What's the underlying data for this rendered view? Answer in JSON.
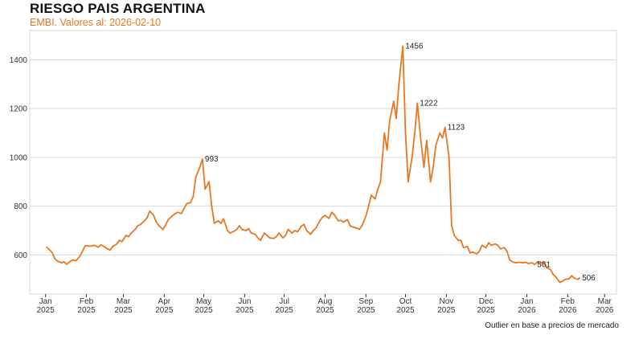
{
  "header": {
    "title": "RIESGO PAIS ARGENTINA",
    "subtitle": "EMBI. Valores al: 2026-02-10"
  },
  "footnote": "Outlier en base a precios de mercado",
  "colors": {
    "line": "#E87722",
    "subtitle": "#E87722",
    "grid": "#D9D9D9",
    "axis": "#333333"
  },
  "chart_data": {
    "type": "line",
    "title": "RIESGO PAIS ARGENTINA",
    "subtitle": "EMBI. Valores al: 2026-02-10",
    "xlabel": "",
    "ylabel": "",
    "grid": true,
    "legend": "none",
    "ylim": [
      440,
      1520
    ],
    "yticks": [
      600,
      800,
      1000,
      1200,
      1400
    ],
    "xlim": [
      "2024-12-20",
      "2026-03-10"
    ],
    "xticks": [
      {
        "date": "2025-01-01",
        "month": "Jan",
        "year": "2025"
      },
      {
        "date": "2025-02-01",
        "month": "Feb",
        "year": "2025"
      },
      {
        "date": "2025-03-01",
        "month": "Mar",
        "year": "2025"
      },
      {
        "date": "2025-04-01",
        "month": "Apr",
        "year": "2025"
      },
      {
        "date": "2025-05-01",
        "month": "May",
        "year": "2025"
      },
      {
        "date": "2025-06-01",
        "month": "Jun",
        "year": "2025"
      },
      {
        "date": "2025-07-01",
        "month": "Jul",
        "year": "2025"
      },
      {
        "date": "2025-08-01",
        "month": "Aug",
        "year": "2025"
      },
      {
        "date": "2025-09-01",
        "month": "Sep",
        "year": "2025"
      },
      {
        "date": "2025-10-01",
        "month": "Oct",
        "year": "2025"
      },
      {
        "date": "2025-11-01",
        "month": "Nov",
        "year": "2025"
      },
      {
        "date": "2025-12-01",
        "month": "Dec",
        "year": "2025"
      },
      {
        "date": "2026-01-01",
        "month": "Jan",
        "year": "2026"
      },
      {
        "date": "2026-02-01",
        "month": "Feb",
        "year": "2026"
      },
      {
        "date": "2026-03-01",
        "month": "Mar",
        "year": "2026"
      }
    ],
    "series": [
      {
        "points": [
          [
            "2025-01-02",
            632
          ],
          [
            "2025-01-06",
            610
          ],
          [
            "2025-01-08",
            585
          ],
          [
            "2025-01-10",
            575
          ],
          [
            "2025-01-13",
            568
          ],
          [
            "2025-01-15",
            572
          ],
          [
            "2025-01-17",
            562
          ],
          [
            "2025-01-20",
            575
          ],
          [
            "2025-01-22",
            580
          ],
          [
            "2025-01-24",
            576
          ],
          [
            "2025-01-27",
            595
          ],
          [
            "2025-01-29",
            615
          ],
          [
            "2025-01-31",
            638
          ],
          [
            "2025-02-04",
            636
          ],
          [
            "2025-02-07",
            640
          ],
          [
            "2025-02-10",
            632
          ],
          [
            "2025-02-12",
            642
          ],
          [
            "2025-02-14",
            636
          ],
          [
            "2025-02-17",
            625
          ],
          [
            "2025-02-19",
            620
          ],
          [
            "2025-02-21",
            635
          ],
          [
            "2025-02-24",
            645
          ],
          [
            "2025-02-26",
            660
          ],
          [
            "2025-02-28",
            655
          ],
          [
            "2025-03-03",
            680
          ],
          [
            "2025-03-05",
            675
          ],
          [
            "2025-03-07",
            690
          ],
          [
            "2025-03-10",
            705
          ],
          [
            "2025-03-12",
            720
          ],
          [
            "2025-03-14",
            725
          ],
          [
            "2025-03-17",
            740
          ],
          [
            "2025-03-19",
            752
          ],
          [
            "2025-03-21",
            780
          ],
          [
            "2025-03-24",
            762
          ],
          [
            "2025-03-26",
            735
          ],
          [
            "2025-03-28",
            720
          ],
          [
            "2025-03-31",
            705
          ],
          [
            "2025-04-02",
            722
          ],
          [
            "2025-04-04",
            745
          ],
          [
            "2025-04-07",
            760
          ],
          [
            "2025-04-09",
            768
          ],
          [
            "2025-04-11",
            775
          ],
          [
            "2025-04-14",
            770
          ],
          [
            "2025-04-16",
            790
          ],
          [
            "2025-04-18",
            810
          ],
          [
            "2025-04-21",
            815
          ],
          [
            "2025-04-23",
            840
          ],
          [
            "2025-04-25",
            920
          ],
          [
            "2025-04-28",
            960
          ],
          [
            "2025-04-30",
            993
          ],
          [
            "2025-05-02",
            870
          ],
          [
            "2025-05-05",
            900
          ],
          [
            "2025-05-07",
            800
          ],
          [
            "2025-05-09",
            730
          ],
          [
            "2025-05-12",
            740
          ],
          [
            "2025-05-14",
            730
          ],
          [
            "2025-05-16",
            748
          ],
          [
            "2025-05-19",
            700
          ],
          [
            "2025-05-21",
            690
          ],
          [
            "2025-05-23",
            695
          ],
          [
            "2025-05-26",
            705
          ],
          [
            "2025-05-28",
            720
          ],
          [
            "2025-05-30",
            705
          ],
          [
            "2025-06-02",
            700
          ],
          [
            "2025-06-04",
            708
          ],
          [
            "2025-06-06",
            690
          ],
          [
            "2025-06-09",
            685
          ],
          [
            "2025-06-11",
            670
          ],
          [
            "2025-06-13",
            660
          ],
          [
            "2025-06-16",
            690
          ],
          [
            "2025-06-18",
            680
          ],
          [
            "2025-06-20",
            670
          ],
          [
            "2025-06-23",
            668
          ],
          [
            "2025-06-25",
            675
          ],
          [
            "2025-06-27",
            690
          ],
          [
            "2025-06-30",
            670
          ],
          [
            "2025-07-02",
            680
          ],
          [
            "2025-07-04",
            705
          ],
          [
            "2025-07-07",
            690
          ],
          [
            "2025-07-09",
            700
          ],
          [
            "2025-07-11",
            695
          ],
          [
            "2025-07-14",
            718
          ],
          [
            "2025-07-16",
            725
          ],
          [
            "2025-07-18",
            700
          ],
          [
            "2025-07-21",
            685
          ],
          [
            "2025-07-23",
            700
          ],
          [
            "2025-07-25",
            710
          ],
          [
            "2025-07-28",
            740
          ],
          [
            "2025-07-30",
            755
          ],
          [
            "2025-08-01",
            762
          ],
          [
            "2025-08-04",
            750
          ],
          [
            "2025-08-06",
            775
          ],
          [
            "2025-08-08",
            765
          ],
          [
            "2025-08-11",
            740
          ],
          [
            "2025-08-13",
            742
          ],
          [
            "2025-08-15",
            735
          ],
          [
            "2025-08-18",
            745
          ],
          [
            "2025-08-20",
            720
          ],
          [
            "2025-08-22",
            715
          ],
          [
            "2025-08-25",
            710
          ],
          [
            "2025-08-27",
            705
          ],
          [
            "2025-08-29",
            720
          ],
          [
            "2025-09-01",
            760
          ],
          [
            "2025-09-03",
            800
          ],
          [
            "2025-09-05",
            845
          ],
          [
            "2025-09-08",
            830
          ],
          [
            "2025-09-10",
            870
          ],
          [
            "2025-09-12",
            900
          ],
          [
            "2025-09-15",
            1100
          ],
          [
            "2025-09-17",
            1030
          ],
          [
            "2025-09-19",
            1150
          ],
          [
            "2025-09-22",
            1230
          ],
          [
            "2025-09-24",
            1160
          ],
          [
            "2025-09-26",
            1300
          ],
          [
            "2025-09-29",
            1456
          ],
          [
            "2025-10-01",
            1100
          ],
          [
            "2025-10-03",
            900
          ],
          [
            "2025-10-06",
            1000
          ],
          [
            "2025-10-08",
            1100
          ],
          [
            "2025-10-10",
            1222
          ],
          [
            "2025-10-13",
            1050
          ],
          [
            "2025-10-15",
            960
          ],
          [
            "2025-10-17",
            1070
          ],
          [
            "2025-10-20",
            900
          ],
          [
            "2025-10-22",
            960
          ],
          [
            "2025-10-24",
            1050
          ],
          [
            "2025-10-27",
            1100
          ],
          [
            "2025-10-29",
            1080
          ],
          [
            "2025-10-31",
            1123
          ],
          [
            "2025-11-03",
            1000
          ],
          [
            "2025-11-05",
            720
          ],
          [
            "2025-11-07",
            680
          ],
          [
            "2025-11-10",
            660
          ],
          [
            "2025-11-12",
            660
          ],
          [
            "2025-11-14",
            630
          ],
          [
            "2025-11-17",
            635
          ],
          [
            "2025-11-19",
            608
          ],
          [
            "2025-11-21",
            612
          ],
          [
            "2025-11-24",
            605
          ],
          [
            "2025-11-26",
            615
          ],
          [
            "2025-11-28",
            640
          ],
          [
            "2025-12-01",
            630
          ],
          [
            "2025-12-03",
            650
          ],
          [
            "2025-12-05",
            640
          ],
          [
            "2025-12-08",
            645
          ],
          [
            "2025-12-10",
            640
          ],
          [
            "2025-12-12",
            625
          ],
          [
            "2025-12-15",
            630
          ],
          [
            "2025-12-17",
            615
          ],
          [
            "2025-12-19",
            580
          ],
          [
            "2025-12-22",
            570
          ],
          [
            "2025-12-24",
            568
          ],
          [
            "2025-12-26",
            570
          ],
          [
            "2025-12-29",
            568
          ],
          [
            "2025-12-31",
            570
          ],
          [
            "2026-01-02",
            565
          ],
          [
            "2026-01-05",
            568
          ],
          [
            "2026-01-07",
            561
          ],
          [
            "2026-01-09",
            572
          ],
          [
            "2026-01-12",
            568
          ],
          [
            "2026-01-14",
            572
          ],
          [
            "2026-01-16",
            548
          ],
          [
            "2026-01-19",
            540
          ],
          [
            "2026-01-21",
            520
          ],
          [
            "2026-01-23",
            510
          ],
          [
            "2026-01-26",
            488
          ],
          [
            "2026-01-28",
            492
          ],
          [
            "2026-01-30",
            500
          ],
          [
            "2026-02-02",
            502
          ],
          [
            "2026-02-04",
            515
          ],
          [
            "2026-02-06",
            505
          ],
          [
            "2026-02-09",
            500
          ],
          [
            "2026-02-10",
            506
          ]
        ]
      }
    ],
    "annotations": [
      {
        "date": "2025-04-30",
        "value": 993,
        "text": "993"
      },
      {
        "date": "2025-09-29",
        "value": 1456,
        "text": "1456"
      },
      {
        "date": "2025-10-10",
        "value": 1222,
        "text": "1222"
      },
      {
        "date": "2025-10-31",
        "value": 1123,
        "text": "1123"
      },
      {
        "date": "2026-01-07",
        "value": 561,
        "text": "561"
      },
      {
        "date": "2026-02-10",
        "value": 506,
        "text": "506"
      }
    ]
  }
}
